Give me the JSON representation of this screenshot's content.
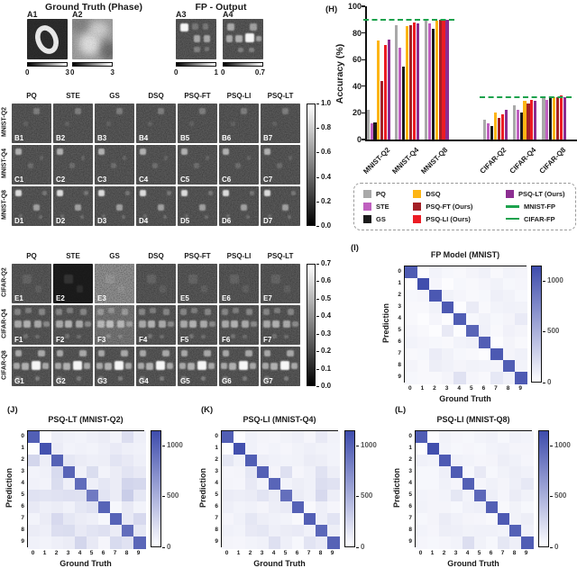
{
  "figure": {
    "gt_panel": {
      "title": "Ground Truth (Phase)",
      "items": [
        {
          "label": "A1",
          "variant": "digit",
          "pattern": null,
          "scale": [
            "0",
            "3"
          ]
        },
        {
          "label": "A2",
          "variant": "photo",
          "pattern": null,
          "scale": [
            "0",
            "3"
          ]
        }
      ]
    },
    "fp_panel": {
      "title": "FP - Output",
      "items": [
        {
          "label": "A3",
          "variant": "spots",
          "pattern": "A3",
          "scale": [
            "0",
            "1"
          ]
        },
        {
          "label": "A4",
          "variant": "spots",
          "pattern": "A4",
          "scale": [
            "0",
            "0.7"
          ]
        }
      ]
    }
  },
  "panel_labels": {
    "h": "(H)",
    "i": "(I)",
    "j": "(J)",
    "k": "(K)",
    "l": "(L)"
  },
  "grids": {
    "columns": [
      "PQ",
      "STE",
      "GS",
      "DSQ",
      "PSQ-FT",
      "PSQ-LI",
      "PSQ-LT"
    ],
    "mnist": {
      "rows": [
        {
          "label": "MNIST-Q2",
          "pattern": "B",
          "cells": [
            "B1",
            "B2",
            "B3",
            "B4",
            "B5",
            "B6",
            "B7"
          ]
        },
        {
          "label": "MNIST-Q4",
          "pattern": "C",
          "cells": [
            "C1",
            "C2",
            "C3",
            "C4",
            "C5",
            "C6",
            "C7"
          ]
        },
        {
          "label": "MNIST-Q8",
          "pattern": "D",
          "cells": [
            "D1",
            "D2",
            "D3",
            "D4",
            "D5",
            "D6",
            "D7"
          ]
        }
      ],
      "colorbar_ticks": [
        "1.0",
        "0.8",
        "0.6",
        "0.4",
        "0.2",
        "0.0"
      ]
    },
    "cifar": {
      "rows": [
        {
          "label": "CIFAR-Q2",
          "pattern": "E",
          "cells": [
            "E1",
            "E2",
            "E3",
            "",
            "E5",
            "E6",
            "E7"
          ]
        },
        {
          "label": "CIFAR-Q4",
          "pattern": "F",
          "cells": [
            "F1",
            "F2",
            "F3",
            "F4",
            "F5",
            "F6",
            "F7"
          ]
        },
        {
          "label": "CIFAR-Q8",
          "pattern": "G",
          "cells": [
            "G1",
            "G2",
            "G3",
            "G4",
            "G5",
            "G6",
            "G7"
          ]
        }
      ],
      "colorbar_ticks": [
        "0.7",
        "0.6",
        "0.5",
        "0.4",
        "0.3",
        "0.2",
        "0.1",
        "0.0"
      ]
    }
  },
  "image_art": {
    "spot_patterns": {
      "A3": [
        [
          10,
          10,
          20,
          0.95
        ],
        [
          40,
          12,
          15,
          0.22
        ],
        [
          66,
          12,
          15,
          0.22
        ],
        [
          44,
          40,
          17,
          0.5
        ],
        [
          68,
          40,
          17,
          0.5
        ],
        [
          44,
          68,
          15,
          0.28
        ],
        [
          70,
          68,
          13,
          0.22
        ]
      ],
      "A4": [
        [
          12,
          10,
          18,
          0.5
        ],
        [
          66,
          10,
          18,
          0.45
        ],
        [
          8,
          40,
          17,
          0.5
        ],
        [
          32,
          40,
          17,
          0.55
        ],
        [
          55,
          36,
          22,
          0.95
        ],
        [
          82,
          42,
          14,
          0.45
        ],
        [
          38,
          70,
          13,
          0.28
        ],
        [
          64,
          70,
          13,
          0.28
        ]
      ],
      "B": [
        [
          55,
          12,
          15,
          0.25
        ],
        [
          30,
          45,
          11,
          0.1
        ]
      ],
      "C": [
        [
          10,
          10,
          16,
          0.55
        ],
        [
          42,
          46,
          13,
          0.16
        ],
        [
          70,
          28,
          10,
          0.12
        ]
      ],
      "D": [
        [
          10,
          10,
          16,
          0.8
        ],
        [
          54,
          46,
          16,
          0.45
        ],
        [
          78,
          12,
          11,
          0.22
        ],
        [
          18,
          70,
          10,
          0.16
        ],
        [
          68,
          72,
          10,
          0.18
        ]
      ],
      "E": [
        [
          28,
          28,
          22,
          0.1
        ],
        [
          58,
          55,
          18,
          0.08
        ]
      ],
      "F": [
        [
          6,
          8,
          16,
          0.3
        ],
        [
          34,
          6,
          15,
          0.26
        ],
        [
          68,
          8,
          16,
          0.3
        ],
        [
          6,
          38,
          18,
          0.5
        ],
        [
          30,
          38,
          18,
          0.55
        ],
        [
          56,
          38,
          18,
          0.5
        ],
        [
          80,
          40,
          15,
          0.32
        ],
        [
          30,
          72,
          12,
          0.2
        ],
        [
          60,
          74,
          11,
          0.18
        ]
      ],
      "G": [
        [
          8,
          8,
          18,
          0.5
        ],
        [
          66,
          8,
          18,
          0.5
        ],
        [
          4,
          40,
          16,
          0.5
        ],
        [
          26,
          40,
          18,
          0.55
        ],
        [
          50,
          36,
          22,
          0.95
        ],
        [
          78,
          40,
          16,
          0.5
        ],
        [
          10,
          74,
          12,
          0.25
        ],
        [
          58,
          74,
          12,
          0.25
        ]
      ]
    },
    "cell_variants": {
      "E2": "black",
      "E3": "bright",
      "F3": "speckle"
    }
  },
  "legend": {
    "columns": [
      [
        {
          "label": "PQ",
          "color": "#a9a9a9",
          "type": "square"
        },
        {
          "label": "STE",
          "color": "#c060c0",
          "type": "square"
        },
        {
          "label": "GS",
          "color": "#1a1a1a",
          "type": "square"
        }
      ],
      [
        {
          "label": "DSQ",
          "color": "#fdb515",
          "type": "square"
        },
        {
          "label": "PSQ-FT (Ours)",
          "color": "#a32026",
          "type": "square"
        },
        {
          "label": "PSQ-LI (Ours)",
          "color": "#ec1c24",
          "type": "square"
        }
      ],
      [
        {
          "label": "PSQ-LT (Ours)",
          "color": "#8c2d91",
          "type": "square"
        },
        {
          "label": "MNIST-FP",
          "color": "#1ca24d",
          "type": "line"
        },
        {
          "label": "CIFAR-FP",
          "color": "#1ca24d",
          "type": "line"
        }
      ]
    ]
  },
  "chart_data": [
    {
      "id": "H",
      "type": "bar",
      "title": "",
      "ylabel": "Accuracy (%)",
      "xlabel": "",
      "ylim": [
        0,
        100
      ],
      "yticks": [
        0,
        20,
        40,
        60,
        80,
        100
      ],
      "categories": [
        "MNIST-Q2",
        "MNIST-Q4",
        "MNIST-Q8",
        "CIFAR-Q2",
        "CIFAR-Q4",
        "CIFAR-Q8"
      ],
      "series": [
        {
          "name": "PQ",
          "color": "#a9a9a9",
          "values": [
            22,
            86,
            90,
            15,
            26,
            32
          ]
        },
        {
          "name": "STE",
          "color": "#c060c0",
          "values": [
            12,
            69,
            87,
            12,
            22,
            30
          ]
        },
        {
          "name": "GS",
          "color": "#1a1a1a",
          "values": [
            13,
            55,
            83,
            10,
            20,
            31
          ]
        },
        {
          "name": "DSQ",
          "color": "#fdb515",
          "values": [
            74,
            85,
            89,
            20,
            29,
            32
          ]
        },
        {
          "name": "PSQ-FT (Ours)",
          "color": "#a32026",
          "values": [
            44,
            86,
            90,
            16,
            27,
            32
          ]
        },
        {
          "name": "PSQ-LI (Ours)",
          "color": "#ec1c24",
          "values": [
            71,
            88,
            90,
            19,
            30,
            33
          ]
        },
        {
          "name": "PSQ-LT (Ours)",
          "color": "#8c2d91",
          "values": [
            75,
            87,
            90,
            22,
            29,
            32
          ]
        }
      ],
      "reference_lines": [
        {
          "name": "MNIST-FP",
          "value": 90,
          "color": "#1ca24d",
          "span_categories": [
            "MNIST-Q2",
            "MNIST-Q8"
          ]
        },
        {
          "name": "CIFAR-FP",
          "value": 32,
          "color": "#1ca24d",
          "span_categories": [
            "CIFAR-Q2",
            "CIFAR-Q8"
          ]
        }
      ]
    },
    {
      "id": "I",
      "type": "heatmap",
      "title": "FP Model (MNIST)",
      "xlabel": "Ground Truth",
      "ylabel": "Prediction",
      "ticks": [
        "0",
        "1",
        "2",
        "3",
        "4",
        "5",
        "6",
        "7",
        "8",
        "9"
      ],
      "colorbar_ticks": [
        "1000",
        "500",
        "0"
      ],
      "vmax": 1150,
      "matrix": [
        [
          970,
          0,
          5,
          2,
          1,
          4,
          8,
          1,
          5,
          4
        ],
        [
          0,
          1125,
          3,
          0,
          2,
          1,
          3,
          6,
          2,
          3
        ],
        [
          2,
          3,
          1010,
          6,
          3,
          1,
          2,
          10,
          6,
          2
        ],
        [
          1,
          1,
          6,
          995,
          0,
          16,
          1,
          5,
          8,
          6
        ],
        [
          1,
          0,
          3,
          0,
          955,
          2,
          6,
          2,
          4,
          18
        ],
        [
          3,
          1,
          0,
          20,
          0,
          875,
          8,
          1,
          7,
          4
        ],
        [
          5,
          3,
          2,
          1,
          5,
          8,
          940,
          0,
          4,
          1
        ],
        [
          1,
          2,
          14,
          6,
          2,
          1,
          0,
          1005,
          4,
          8
        ],
        [
          4,
          1,
          12,
          8,
          4,
          6,
          5,
          4,
          950,
          5
        ],
        [
          2,
          1,
          1,
          4,
          35,
          3,
          1,
          22,
          8,
          985
        ]
      ]
    },
    {
      "id": "J",
      "type": "heatmap",
      "title": "PSQ-LT (MNIST-Q2)",
      "xlabel": "Ground Truth",
      "ylabel": "Prediction",
      "ticks": [
        "0",
        "1",
        "2",
        "3",
        "4",
        "5",
        "6",
        "7",
        "8",
        "9"
      ],
      "colorbar_ticks": [
        "1000",
        "500",
        "0"
      ],
      "vmax": 1150,
      "matrix": [
        [
          935,
          0,
          12,
          8,
          5,
          10,
          15,
          5,
          45,
          10
        ],
        [
          0,
          1085,
          15,
          5,
          8,
          5,
          10,
          18,
          10,
          8
        ],
        [
          70,
          12,
          905,
          25,
          15,
          10,
          12,
          30,
          20,
          10
        ],
        [
          5,
          8,
          55,
          880,
          8,
          50,
          5,
          15,
          30,
          20
        ],
        [
          8,
          5,
          50,
          10,
          800,
          10,
          25,
          15,
          75,
          65
        ],
        [
          35,
          30,
          35,
          40,
          38,
          660,
          30,
          15,
          105,
          25
        ],
        [
          20,
          10,
          15,
          8,
          25,
          35,
          885,
          2,
          20,
          5
        ],
        [
          5,
          15,
          60,
          25,
          15,
          10,
          2,
          895,
          20,
          60
        ],
        [
          15,
          10,
          45,
          50,
          20,
          30,
          40,
          15,
          785,
          25
        ],
        [
          8,
          5,
          10,
          15,
          70,
          20,
          3,
          55,
          35,
          860
        ]
      ]
    },
    {
      "id": "K",
      "type": "heatmap",
      "title": "PSQ-LI (MNIST-Q4)",
      "xlabel": "Ground Truth",
      "ylabel": "Prediction",
      "ticks": [
        "0",
        "1",
        "2",
        "3",
        "4",
        "5",
        "6",
        "7",
        "8",
        "9"
      ],
      "colorbar_ticks": [
        "1000",
        "500",
        "0"
      ],
      "vmax": 1150,
      "matrix": [
        [
          950,
          0,
          8,
          4,
          3,
          6,
          10,
          3,
          20,
          6
        ],
        [
          0,
          1100,
          8,
          3,
          5,
          3,
          6,
          10,
          6,
          5
        ],
        [
          25,
          8,
          950,
          12,
          8,
          5,
          6,
          15,
          12,
          5
        ],
        [
          3,
          4,
          25,
          920,
          4,
          40,
          3,
          8,
          35,
          12
        ],
        [
          4,
          3,
          20,
          5,
          870,
          5,
          12,
          8,
          45,
          35
        ],
        [
          15,
          12,
          15,
          30,
          15,
          765,
          15,
          8,
          60,
          12
        ],
        [
          10,
          5,
          8,
          4,
          12,
          18,
          910,
          1,
          10,
          3
        ],
        [
          3,
          8,
          25,
          12,
          8,
          5,
          1,
          930,
          10,
          30
        ],
        [
          8,
          5,
          20,
          25,
          10,
          15,
          18,
          8,
          850,
          12
        ],
        [
          4,
          3,
          5,
          8,
          40,
          10,
          2,
          30,
          18,
          900
        ]
      ]
    },
    {
      "id": "L",
      "type": "heatmap",
      "title": "PSQ-LI (MNIST-Q8)",
      "xlabel": "Ground Truth",
      "ylabel": "Prediction",
      "ticks": [
        "0",
        "1",
        "2",
        "3",
        "4",
        "5",
        "6",
        "7",
        "8",
        "9"
      ],
      "colorbar_ticks": [
        "1000",
        "500",
        "0"
      ],
      "vmax": 1150,
      "matrix": [
        [
          965,
          0,
          6,
          3,
          2,
          5,
          8,
          2,
          8,
          5
        ],
        [
          0,
          1115,
          5,
          2,
          3,
          2,
          5,
          8,
          4,
          4
        ],
        [
          8,
          5,
          985,
          8,
          5,
          3,
          4,
          12,
          8,
          3
        ],
        [
          2,
          2,
          10,
          975,
          2,
          20,
          2,
          6,
          12,
          8
        ],
        [
          2,
          2,
          8,
          3,
          925,
          3,
          8,
          4,
          10,
          22
        ],
        [
          5,
          4,
          5,
          25,
          5,
          845,
          10,
          3,
          15,
          6
        ],
        [
          6,
          4,
          4,
          2,
          8,
          10,
          930,
          1,
          6,
          2
        ],
        [
          2,
          4,
          15,
          8,
          4,
          3,
          1,
          985,
          6,
          12
        ],
        [
          5,
          3,
          12,
          10,
          6,
          8,
          8,
          5,
          915,
          8
        ],
        [
          3,
          2,
          3,
          5,
          45,
          6,
          2,
          25,
          10,
          955
        ]
      ]
    }
  ]
}
